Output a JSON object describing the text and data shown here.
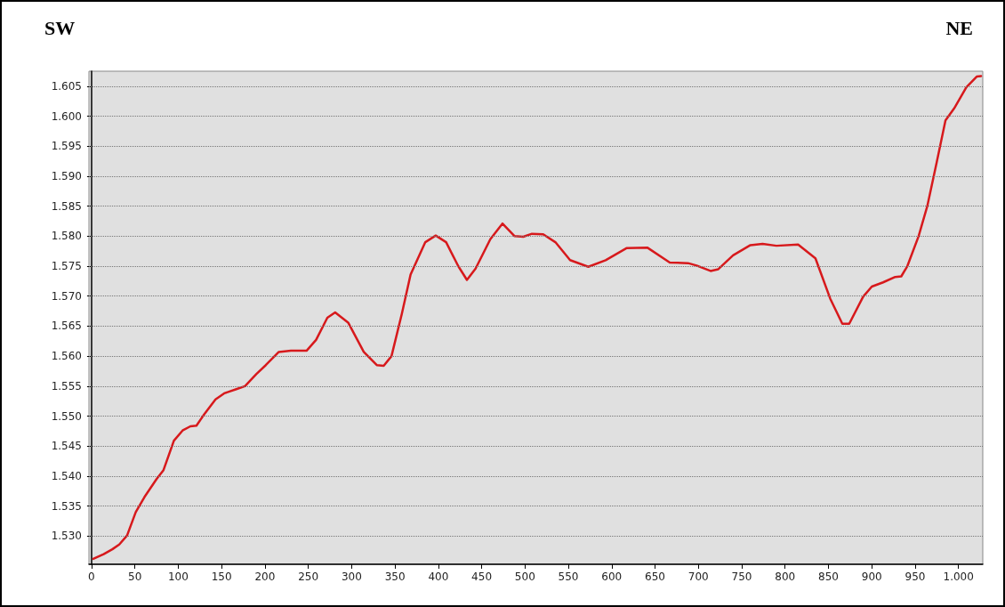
{
  "chart_data": {
    "type": "line",
    "annotations": [
      "SW",
      "NE"
    ],
    "x": [
      2,
      14,
      24,
      32,
      41,
      51,
      61,
      75,
      83,
      95,
      105,
      114,
      121,
      129,
      143,
      153,
      167,
      177,
      190,
      201,
      216,
      230,
      248,
      259,
      272,
      281,
      296,
      314,
      329,
      337,
      346,
      358,
      368,
      385,
      397,
      409,
      423,
      433,
      443,
      460,
      474,
      488,
      498,
      508,
      521,
      535,
      552,
      573,
      593,
      617,
      641,
      667,
      688,
      698,
      714,
      723,
      740,
      760,
      774,
      790,
      815,
      835,
      852,
      866,
      874,
      890,
      900,
      913,
      927,
      934,
      941,
      954,
      964,
      975,
      985,
      995,
      1009,
      1021,
      1026
    ],
    "series": [
      {
        "color": "#d7191c",
        "values": [
          1526.2,
          1527.0,
          1527.8,
          1528.6,
          1530.1,
          1534.0,
          1536.5,
          1539.5,
          1541.0,
          1545.9,
          1547.6,
          1548.3,
          1548.4,
          1550.1,
          1552.8,
          1553.8,
          1554.5,
          1555.0,
          1557.0,
          1558.5,
          1560.7,
          1560.9,
          1560.9,
          1562.7,
          1566.4,
          1567.3,
          1565.6,
          1560.7,
          1558.5,
          1558.4,
          1560.0,
          1567.1,
          1573.6,
          1579.0,
          1580.1,
          1579.0,
          1575.0,
          1572.7,
          1574.6,
          1579.5,
          1582.1,
          1580.0,
          1579.9,
          1580.4,
          1580.3,
          1579.0,
          1576.0,
          1574.9,
          1576.0,
          1578.0,
          1578.1,
          1575.6,
          1575.5,
          1575.1,
          1574.2,
          1574.5,
          1576.8,
          1578.5,
          1578.7,
          1578.4,
          1578.6,
          1576.3,
          1569.6,
          1565.4,
          1565.4,
          1569.9,
          1571.6,
          1572.3,
          1573.2,
          1573.3,
          1575.0,
          1580.0,
          1585.0,
          1592.4,
          1599.3,
          1601.3,
          1604.8,
          1606.6,
          1606.7
        ]
      }
    ],
    "xlim": [
      -3,
      1028
    ],
    "xticks": [
      0,
      50,
      100,
      150,
      200,
      250,
      300,
      350,
      400,
      450,
      500,
      550,
      600,
      650,
      700,
      750,
      800,
      850,
      900,
      950,
      {
        "value": 1000,
        "label": "1.000"
      }
    ],
    "ylim": [
      1525.3,
      1607.5
    ],
    "yticks": [
      {
        "value": 1530,
        "label": "1.530"
      },
      {
        "value": 1535,
        "label": "1.535"
      },
      {
        "value": 1540,
        "label": "1.540"
      },
      {
        "value": 1545,
        "label": "1.545"
      },
      {
        "value": 1550,
        "label": "1.550"
      },
      {
        "value": 1555,
        "label": "1.555"
      },
      {
        "value": 1560,
        "label": "1.560"
      },
      {
        "value": 1565,
        "label": "1.565"
      },
      {
        "value": 1570,
        "label": "1.570"
      },
      {
        "value": 1575,
        "label": "1.575"
      },
      {
        "value": 1580,
        "label": "1.580"
      },
      {
        "value": 1585,
        "label": "1.585"
      },
      {
        "value": 1590,
        "label": "1.590"
      },
      {
        "value": 1595,
        "label": "1.595"
      },
      {
        "value": 1600,
        "label": "1.600"
      },
      {
        "value": 1605,
        "label": "1.605"
      }
    ],
    "grid": "y",
    "marker": "none",
    "line_style": "solid"
  }
}
